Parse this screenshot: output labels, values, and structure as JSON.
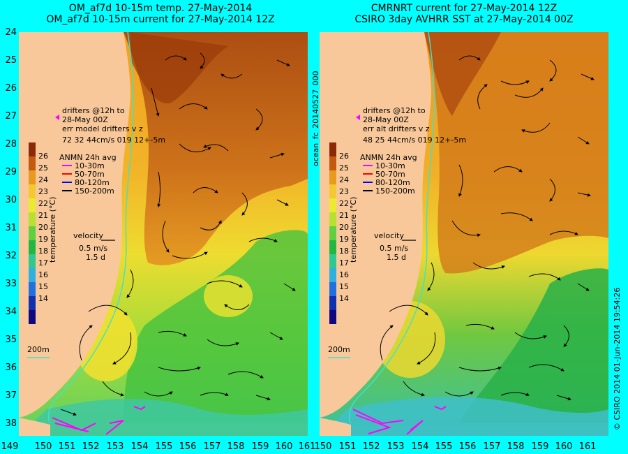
{
  "left": {
    "title_line1": "OM_af7d 10-15m temp. 27-May-2014",
    "title_line2": "OM_af7d 10-15m current for 27-May-2014 12Z",
    "drifters_line1": "drifters @12h to",
    "drifters_line2": "28-May 00Z",
    "err_line": "err model drifters v z",
    "err_values": "72   32     44cm/s 019 12+-5m"
  },
  "right": {
    "title_line1": "CMRNRT current for 27-May-2014 12Z",
    "title_line2": "CSIRO 3day AVHRR SST at 27-May-2014 00Z",
    "drifters_line1": "drifters @12h to",
    "drifters_line2": "28-May 00Z",
    "err_line": "err alt drifters v z",
    "err_values": "48 25 44cm/s 019 12+-5m"
  },
  "legend": {
    "anmn_title": "ANMN 24h avg",
    "anmn_items": [
      {
        "label": "10-30m",
        "color": "#ff00ff"
      },
      {
        "label": "50-70m",
        "color": "#ff0000"
      },
      {
        "label": "80-120m",
        "color": "#0000ff"
      },
      {
        "label": "150-200m",
        "color": "#000000"
      }
    ],
    "velocity_label": "velocity",
    "velocity_value": "0.5 m/s",
    "velocity_days": "1.5 d",
    "isobath_label": "200m",
    "colorbar_label": "temperature (°C)",
    "colorbar_ticks": [
      "26",
      "25",
      "24",
      "23",
      "22",
      "21",
      "20",
      "19",
      "18",
      "17",
      "16",
      "15",
      "14"
    ],
    "colorbar_colors": [
      "#8b2a08",
      "#c45a10",
      "#e89a1c",
      "#f4c830",
      "#eaea30",
      "#b8e030",
      "#60d040",
      "#20b840",
      "#30c890",
      "#30b0e0",
      "#2070e0",
      "#1030b0",
      "#100880"
    ]
  },
  "axes": {
    "lat_ticks": [
      "24",
      "25",
      "26",
      "27",
      "28",
      "29",
      "30",
      "31",
      "32",
      "33",
      "34",
      "35",
      "36",
      "37",
      "38"
    ],
    "lon_ticks": [
      "149",
      "150",
      "151",
      "152",
      "153",
      "154",
      "155",
      "156",
      "157",
      "158",
      "159",
      "160",
      "161"
    ]
  },
  "side_left": "ocean_fc_20140527_000",
  "side_right": "© CSIRO 2014   01-Jun-2014 19:54:26",
  "colors": {
    "background": "#00ffff",
    "land": "#f8c89a",
    "isobath": "#40e0d0",
    "drifter": "#ff00ff"
  }
}
